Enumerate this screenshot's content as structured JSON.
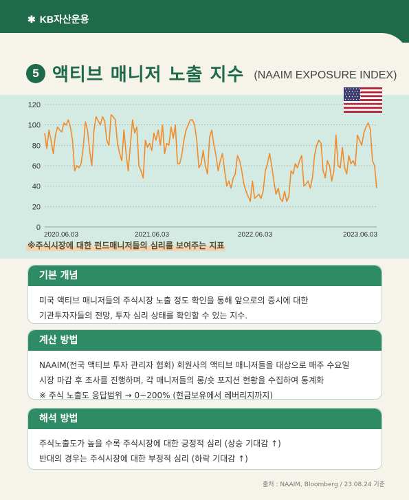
{
  "brand": {
    "star": "✱",
    "name": "KB자산운용"
  },
  "header": {
    "number": "5",
    "title": "액티브 매니저 노출 지수",
    "subtitle_en": "(NAAIM EXPOSURE INDEX)"
  },
  "note": "※주식시장에 대한 펀드매니저들의 심리를 보여주는 지표",
  "colors": {
    "line": "#f08a2a",
    "accent": "#1f6a4a",
    "band": "#d4ebe3"
  },
  "chart_data": {
    "type": "line",
    "title": "",
    "xlabel": "",
    "ylabel": "",
    "x_tick_labels": [
      "2020.06.03",
      "2021.06.03",
      "2022.06.03",
      "2023.06.03"
    ],
    "y_tick_labels": [
      "0",
      "20",
      "40",
      "60",
      "80",
      "100",
      "120"
    ],
    "ylim": [
      0,
      120
    ],
    "x_range": [
      "2020-06-03",
      "2023-08-24"
    ],
    "grid": "horizontal dotted",
    "series": [
      {
        "frequency": "weekly",
        "values": [
          92,
          77,
          95,
          85,
          72,
          90,
          98,
          95,
          93,
          102,
          100,
          105,
          98,
          85,
          55,
          60,
          58,
          62,
          78,
          103,
          95,
          75,
          60,
          95,
          108,
          104,
          100,
          108,
          104,
          85,
          80,
          110,
          108,
          105,
          82,
          72,
          65,
          95,
          72,
          55,
          80,
          105,
          92,
          98,
          60,
          55,
          48,
          85,
          78,
          82,
          75,
          92,
          85,
          95,
          80,
          100,
          72,
          82,
          80,
          98,
          87,
          100,
          62,
          62,
          70,
          85,
          95,
          100,
          105,
          105,
          100,
          85,
          58,
          62,
          75,
          60,
          52,
          88,
          95,
          80,
          70,
          55,
          65,
          72,
          55,
          40,
          45,
          38,
          48,
          52,
          70,
          65,
          55,
          42,
          35,
          30,
          25,
          45,
          28,
          30,
          32,
          28,
          35,
          55,
          62,
          72,
          60,
          45,
          32,
          38,
          28,
          25,
          35,
          25,
          30,
          55,
          52,
          62,
          58,
          65,
          70,
          40,
          42,
          45,
          38,
          48,
          70,
          80,
          85,
          82,
          55,
          48,
          65,
          60,
          45,
          55,
          90,
          60,
          58,
          78,
          58,
          52,
          70,
          62,
          65,
          60,
          90,
          85,
          80,
          92,
          98,
          102,
          96,
          65,
          60,
          38
        ]
      }
    ]
  },
  "sections": [
    {
      "heading": "기본 개념",
      "lines": [
        "미국 액티브 매니저들의 주식시장 노출 정도 확인을 통해 앞으로의 증시에 대한",
        "기관투자자들의 전망, 투자 심리 상태를 확인할 수 있는 지수."
      ]
    },
    {
      "heading": "계산 방법",
      "lines": [
        "NAAIM(전국 액티브 투자 관리자 협회) 회원사의 액티브 매니저들을 대상으로 매주 수요일",
        "시장 마감 후 조사를 진행하며, 각 매니저들의 롱/숏 포지션 현황을 수집하여 통계화",
        "※ 주식 노출도 응답범위 → 0~200% (현금보유에서 레버리지까지)"
      ]
    },
    {
      "heading": "해석 방법",
      "lines": [
        "주식노출도가 높을 수록 주식시장에 대한 긍정적 심리 (상승 기대감 ↑)",
        "반대의 경우는 주식시장에 대한 부정적 심리 (하락 기대감 ↑)"
      ]
    }
  ],
  "source": "출처 : NAAIM, Bloomberg / 23.08.24 기준"
}
